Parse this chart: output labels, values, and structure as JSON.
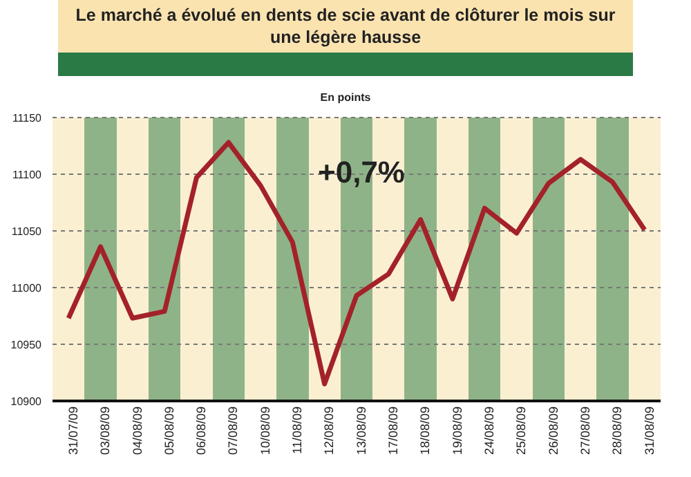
{
  "chart_data": {
    "type": "line",
    "title": "Le marché a évolué en dents de scie avant de clôturer le mois sur une légère hausse",
    "ylabel": "En points",
    "annotations": [
      "+0,7%"
    ],
    "categories": [
      "31/07/09",
      "03/08/09",
      "04/08/09",
      "05/08/09",
      "06/08/09",
      "07/08/09",
      "10/08/09",
      "11/08/09",
      "12/08/09",
      "13/08/09",
      "17/08/09",
      "18/08/09",
      "19/08/09",
      "24/08/09",
      "25/08/09",
      "26/08/09",
      "27/08/09",
      "28/08/09",
      "31/08/09"
    ],
    "series": [
      {
        "color": "#a3222a",
        "values": [
          10973,
          11036,
          10973,
          10979,
          11097,
          11128,
          11090,
          11040,
          10915,
          10993,
          11012,
          11060,
          10990,
          11070,
          11048,
          11092,
          11113,
          11093,
          11051
        ]
      }
    ],
    "ylim": [
      10900,
      11150
    ],
    "yticks": [
      10900,
      10950,
      11000,
      11050,
      11100,
      11150
    ],
    "grid": "y",
    "legend": false,
    "marker": "none",
    "line_style": "solid"
  }
}
